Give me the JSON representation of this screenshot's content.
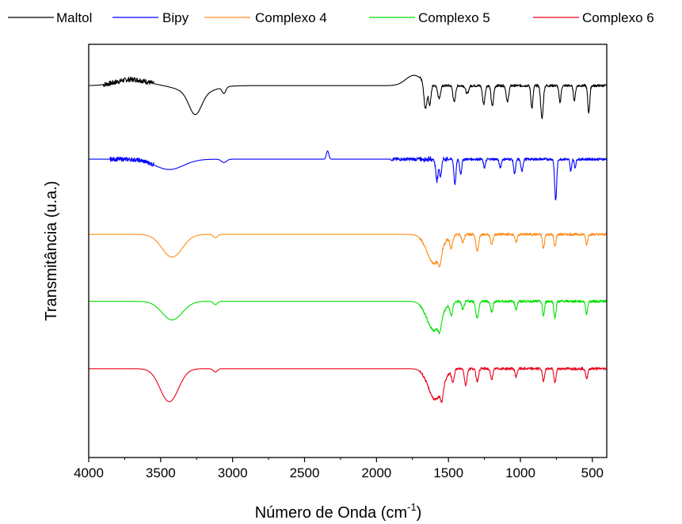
{
  "chart_data": {
    "type": "line",
    "title": "",
    "xlabel": "Número de Onda (cm",
    "xlabel_sup": "-1",
    "xlabel_close": ")",
    "ylabel": "Transmitância (u.a.)",
    "xlim": [
      4000,
      400
    ],
    "x_reversed": true,
    "x_ticks": [
      4000,
      3500,
      3000,
      2500,
      2000,
      1500,
      1000,
      500
    ],
    "x_tick_labels": [
      "4000",
      "3500",
      "3000",
      "2500",
      "2000",
      "1500",
      "1000",
      "500"
    ],
    "y_ticks_shown": false,
    "grid": false,
    "legend": "top",
    "series": [
      {
        "name": "Maltol",
        "color": "#000000",
        "baseline": 0.9,
        "noise": [
          {
            "x0": 3900,
            "x1": 3550,
            "amp": 0.012
          }
        ],
        "features": [
          {
            "x": 3700,
            "w": 150,
            "d": -0.015
          },
          {
            "x": 3260,
            "w": 60,
            "d": 0.05
          },
          {
            "x": 3250,
            "w": 150,
            "d": 0.02
          },
          {
            "x": 3060,
            "w": 18,
            "d": 0.015
          },
          {
            "x": 1740,
            "w": 80,
            "d": -0.025
          },
          {
            "x": 1660,
            "w": 15,
            "d": 0.065
          },
          {
            "x": 1630,
            "w": 12,
            "d": 0.05
          },
          {
            "x": 1565,
            "w": 14,
            "d": 0.03
          },
          {
            "x": 1460,
            "w": 12,
            "d": 0.04
          },
          {
            "x": 1370,
            "w": 14,
            "d": 0.02
          },
          {
            "x": 1255,
            "w": 12,
            "d": 0.045
          },
          {
            "x": 1195,
            "w": 12,
            "d": 0.05
          },
          {
            "x": 1090,
            "w": 12,
            "d": 0.04
          },
          {
            "x": 920,
            "w": 10,
            "d": 0.055
          },
          {
            "x": 850,
            "w": 12,
            "d": 0.08
          },
          {
            "x": 725,
            "w": 10,
            "d": 0.04
          },
          {
            "x": 625,
            "w": 10,
            "d": 0.035
          },
          {
            "x": 525,
            "w": 10,
            "d": 0.065
          }
        ]
      },
      {
        "name": "Bipy",
        "color": "#0000ff",
        "baseline": 0.722,
        "noise": [
          {
            "x0": 3850,
            "x1": 3550,
            "amp": 0.01
          },
          {
            "x0": 1900,
            "x1": 1500,
            "amp": 0.008
          }
        ],
        "features": [
          {
            "x": 3440,
            "w": 140,
            "d": 0.025
          },
          {
            "x": 3060,
            "w": 25,
            "d": 0.008
          },
          {
            "x": 2340,
            "w": 12,
            "d": -0.02
          },
          {
            "x": 1580,
            "w": 12,
            "d": 0.05
          },
          {
            "x": 1555,
            "w": 10,
            "d": 0.04
          },
          {
            "x": 1455,
            "w": 10,
            "d": 0.06
          },
          {
            "x": 1415,
            "w": 10,
            "d": 0.035
          },
          {
            "x": 1250,
            "w": 10,
            "d": 0.02
          },
          {
            "x": 1140,
            "w": 10,
            "d": 0.02
          },
          {
            "x": 1040,
            "w": 10,
            "d": 0.035
          },
          {
            "x": 990,
            "w": 10,
            "d": 0.03
          },
          {
            "x": 755,
            "w": 10,
            "d": 0.1
          },
          {
            "x": 650,
            "w": 8,
            "d": 0.03
          },
          {
            "x": 620,
            "w": 8,
            "d": 0.02
          }
        ]
      },
      {
        "name": "Complexo 4",
        "color": "#ff8c1a",
        "baseline": 0.54,
        "noise": [],
        "features": [
          {
            "x": 3420,
            "w": 100,
            "d": 0.055
          },
          {
            "x": 3120,
            "w": 20,
            "d": 0.008
          },
          {
            "x": 1600,
            "w": 70,
            "d": 0.07
          },
          {
            "x": 1560,
            "w": 14,
            "d": 0.025
          },
          {
            "x": 1480,
            "w": 14,
            "d": 0.03
          },
          {
            "x": 1400,
            "w": 12,
            "d": 0.02
          },
          {
            "x": 1300,
            "w": 14,
            "d": 0.04
          },
          {
            "x": 1200,
            "w": 12,
            "d": 0.025
          },
          {
            "x": 1030,
            "w": 10,
            "d": 0.02
          },
          {
            "x": 840,
            "w": 10,
            "d": 0.035
          },
          {
            "x": 760,
            "w": 10,
            "d": 0.03
          },
          {
            "x": 540,
            "w": 10,
            "d": 0.025
          }
        ]
      },
      {
        "name": "Complexo 5",
        "color": "#00e000",
        "baseline": 0.378,
        "noise": [],
        "features": [
          {
            "x": 3420,
            "w": 100,
            "d": 0.045
          },
          {
            "x": 3120,
            "w": 20,
            "d": 0.008
          },
          {
            "x": 1600,
            "w": 70,
            "d": 0.07
          },
          {
            "x": 1560,
            "w": 14,
            "d": 0.025
          },
          {
            "x": 1480,
            "w": 14,
            "d": 0.03
          },
          {
            "x": 1400,
            "w": 12,
            "d": 0.02
          },
          {
            "x": 1300,
            "w": 14,
            "d": 0.04
          },
          {
            "x": 1200,
            "w": 12,
            "d": 0.025
          },
          {
            "x": 1030,
            "w": 10,
            "d": 0.02
          },
          {
            "x": 840,
            "w": 10,
            "d": 0.035
          },
          {
            "x": 760,
            "w": 10,
            "d": 0.04
          },
          {
            "x": 540,
            "w": 10,
            "d": 0.03
          }
        ]
      },
      {
        "name": "Complexo 6",
        "color": "#e8001a",
        "baseline": 0.215,
        "noise": [],
        "features": [
          {
            "x": 3440,
            "w": 90,
            "d": 0.08
          },
          {
            "x": 3120,
            "w": 20,
            "d": 0.008
          },
          {
            "x": 1590,
            "w": 70,
            "d": 0.075
          },
          {
            "x": 1545,
            "w": 12,
            "d": 0.03
          },
          {
            "x": 1470,
            "w": 12,
            "d": 0.03
          },
          {
            "x": 1380,
            "w": 12,
            "d": 0.04
          },
          {
            "x": 1300,
            "w": 12,
            "d": 0.03
          },
          {
            "x": 1200,
            "w": 12,
            "d": 0.025
          },
          {
            "x": 1030,
            "w": 10,
            "d": 0.02
          },
          {
            "x": 840,
            "w": 10,
            "d": 0.03
          },
          {
            "x": 760,
            "w": 10,
            "d": 0.035
          },
          {
            "x": 540,
            "w": 10,
            "d": 0.025
          }
        ]
      }
    ]
  }
}
